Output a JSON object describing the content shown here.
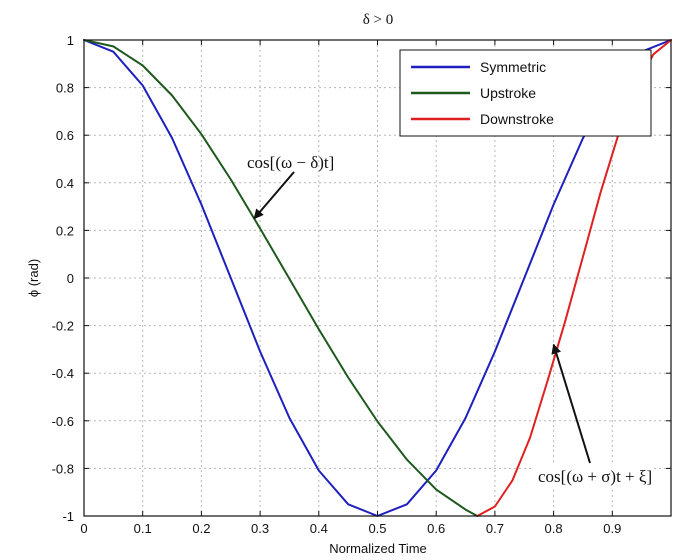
{
  "chart_data": {
    "type": "line",
    "title": "δ > 0",
    "xlabel": "Normalized Time",
    "ylabel": "ϕ (rad)",
    "xlim": [
      0,
      1
    ],
    "ylim": [
      -1,
      1
    ],
    "grid": true,
    "legend_position": "top-right",
    "xticks": [
      0,
      0.1,
      0.2,
      0.3,
      0.4,
      0.5,
      0.6,
      0.7,
      0.8,
      0.9
    ],
    "xtick_labels": [
      "0",
      "0.1",
      "0.2",
      "0.3",
      "0.4",
      "0.5",
      "0.6",
      "0.7",
      "0.8",
      "0.9"
    ],
    "yticks": [
      -1,
      -0.8,
      -0.6,
      -0.4,
      -0.2,
      0,
      0.2,
      0.4,
      0.6,
      0.8,
      1
    ],
    "ytick_labels": [
      "-1",
      "-0.8",
      "-0.6",
      "-0.4",
      "-0.2",
      "0",
      "0.2",
      "0.4",
      "0.6",
      "0.8",
      "1"
    ],
    "series": [
      {
        "name": "Symmetric",
        "color": "#1f1fbf",
        "x": [
          0,
          0.05,
          0.1,
          0.15,
          0.2,
          0.25,
          0.3,
          0.35,
          0.4,
          0.45,
          0.5,
          0.55,
          0.6,
          0.65,
          0.7,
          0.75,
          0.8,
          0.85,
          0.9,
          0.95,
          1
        ],
        "y": [
          1,
          0.951,
          0.809,
          0.588,
          0.309,
          0,
          -0.309,
          -0.588,
          -0.809,
          -0.951,
          -1,
          -0.951,
          -0.809,
          -0.588,
          -0.309,
          0,
          0.309,
          0.588,
          0.809,
          0.951,
          1
        ]
      },
      {
        "name": "Upstroke",
        "color": "#1e5a1e",
        "x": [
          0,
          0.05,
          0.1,
          0.15,
          0.2,
          0.25,
          0.3,
          0.35,
          0.4,
          0.45,
          0.5,
          0.55,
          0.6,
          0.65,
          0.67
        ],
        "y": [
          1,
          0.973,
          0.893,
          0.767,
          0.604,
          0.414,
          0.208,
          -0.003,
          -0.215,
          -0.418,
          -0.603,
          -0.763,
          -0.889,
          -0.973,
          -1
        ]
      },
      {
        "name": "Downstroke",
        "color": "#e02020",
        "x": [
          0.67,
          0.7,
          0.73,
          0.76,
          0.79,
          0.82,
          0.85,
          0.88,
          0.91,
          0.94,
          0.97,
          1
        ],
        "y": [
          -1,
          -0.96,
          -0.85,
          -0.67,
          -0.43,
          -0.18,
          0.09,
          0.36,
          0.6,
          0.8,
          0.94,
          1
        ]
      }
    ],
    "annotations": [
      {
        "text": "cos[(ω − δ)t]",
        "arrow_to": [
          0.29,
          0.25
        ]
      },
      {
        "text": "cos[(ω + σ)t + ξ]",
        "arrow_to": [
          0.8,
          -0.28
        ]
      }
    ]
  }
}
